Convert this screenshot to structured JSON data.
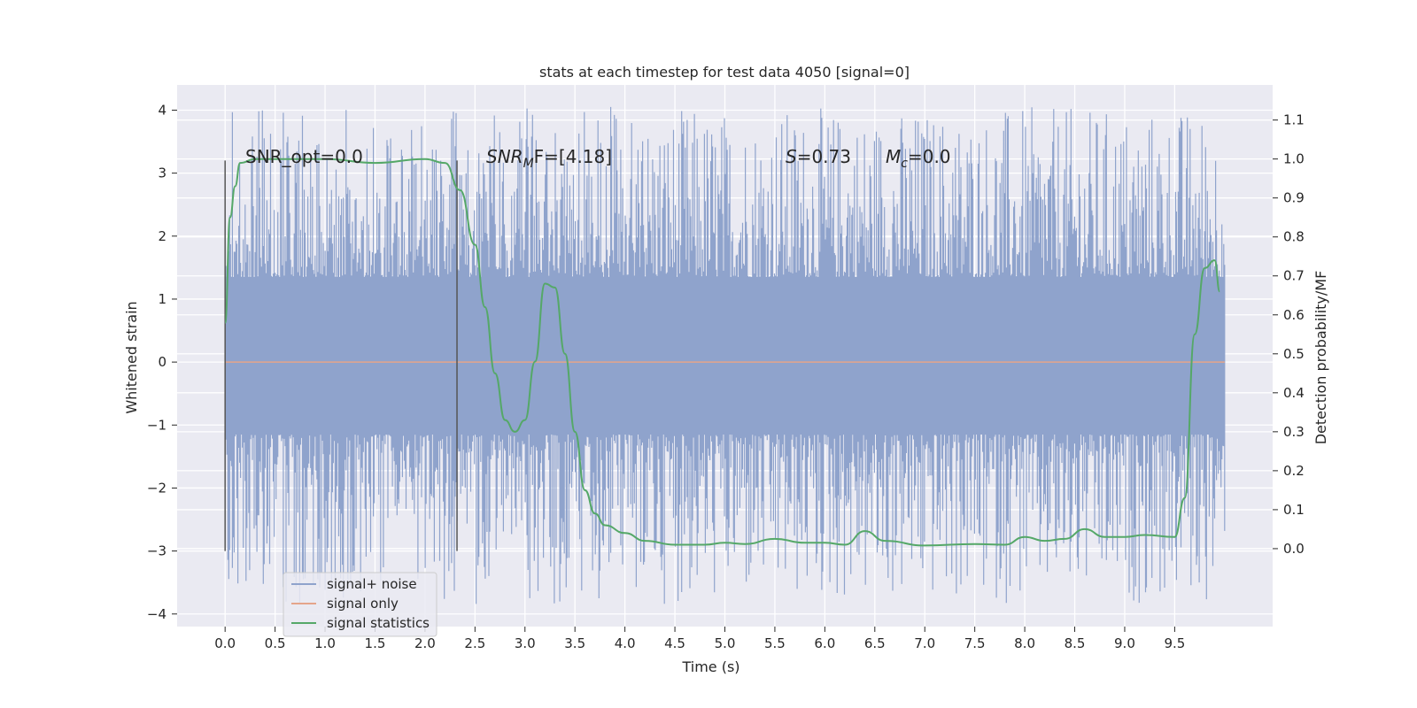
{
  "chart_data": {
    "type": "line",
    "title": "stats at each timestep for test data 4050 [signal=0]",
    "xlabel": "Time (s)",
    "ylabel": "Whitened strain",
    "ylabel_right": "Detection probability/MF",
    "xlim": [
      -0.48,
      10.48
    ],
    "ylim": [
      -4.2,
      4.4
    ],
    "ylim_right": [
      -0.2,
      1.19
    ],
    "x_ticks": [
      "0.0",
      "0.5",
      "1.0",
      "1.5",
      "2.0",
      "2.5",
      "3.0",
      "3.5",
      "4.0",
      "4.5",
      "5.0",
      "5.5",
      "6.0",
      "6.5",
      "7.0",
      "7.5",
      "8.0",
      "8.5",
      "9.0",
      "9.5"
    ],
    "y_ticks": [
      "4",
      "3",
      "2",
      "1",
      "0",
      "−1",
      "−2",
      "−3",
      "−4"
    ],
    "y_ticks_right": [
      "1.1",
      "1.0",
      "0.9",
      "0.8",
      "0.7",
      "0.6",
      "0.5",
      "0.4",
      "0.3",
      "0.2",
      "0.1",
      "0.0"
    ],
    "grid": true,
    "legend_position": "lower-left",
    "annotations": {
      "snr_opt": "SNR_opt=0.0",
      "snr_mf_prefix": "SNR",
      "snr_mf_sub": "M",
      "snr_mf_suffix": "F=[4.18]",
      "s_prefix": "S",
      "s_suffix": "=0.73",
      "mc_prefix": "M",
      "mc_sub": "c",
      "mc_suffix": "=0.0"
    },
    "vertical_markers_x": [
      0.0,
      2.32
    ],
    "series": [
      {
        "name": "signal+ noise",
        "color": "#8fa3cc",
        "noise_band": [
          -1.15,
          1.35
        ],
        "time_range": [
          0.0,
          10.0
        ]
      },
      {
        "name": "signal only",
        "color": "#e5a58a",
        "x": [
          0.0,
          10.0
        ],
        "values": [
          0.0,
          0.0
        ]
      },
      {
        "name": "signal statistics",
        "color": "#55a868",
        "axis": "right",
        "x": [
          0.0,
          0.05,
          0.1,
          0.15,
          0.3,
          0.5,
          1.0,
          1.5,
          2.0,
          2.2,
          2.35,
          2.5,
          2.6,
          2.7,
          2.8,
          2.9,
          3.0,
          3.1,
          3.2,
          3.3,
          3.4,
          3.5,
          3.6,
          3.7,
          3.8,
          4.0,
          4.2,
          4.5,
          4.8,
          5.0,
          5.2,
          5.5,
          5.8,
          6.0,
          6.2,
          6.4,
          6.6,
          7.0,
          7.5,
          7.8,
          8.0,
          8.2,
          8.4,
          8.6,
          8.8,
          9.0,
          9.2,
          9.5,
          9.6,
          9.7,
          9.8,
          9.9,
          9.95
        ],
        "values": [
          0.58,
          0.85,
          0.93,
          0.99,
          1.0,
          1.0,
          1.0,
          0.99,
          1.0,
          0.99,
          0.92,
          0.78,
          0.62,
          0.45,
          0.33,
          0.3,
          0.33,
          0.48,
          0.68,
          0.67,
          0.5,
          0.3,
          0.15,
          0.09,
          0.06,
          0.04,
          0.02,
          0.01,
          0.01,
          0.015,
          0.012,
          0.025,
          0.015,
          0.015,
          0.01,
          0.045,
          0.02,
          0.008,
          0.012,
          0.01,
          0.03,
          0.02,
          0.025,
          0.05,
          0.03,
          0.03,
          0.035,
          0.03,
          0.13,
          0.55,
          0.72,
          0.74,
          0.66
        ]
      }
    ]
  }
}
